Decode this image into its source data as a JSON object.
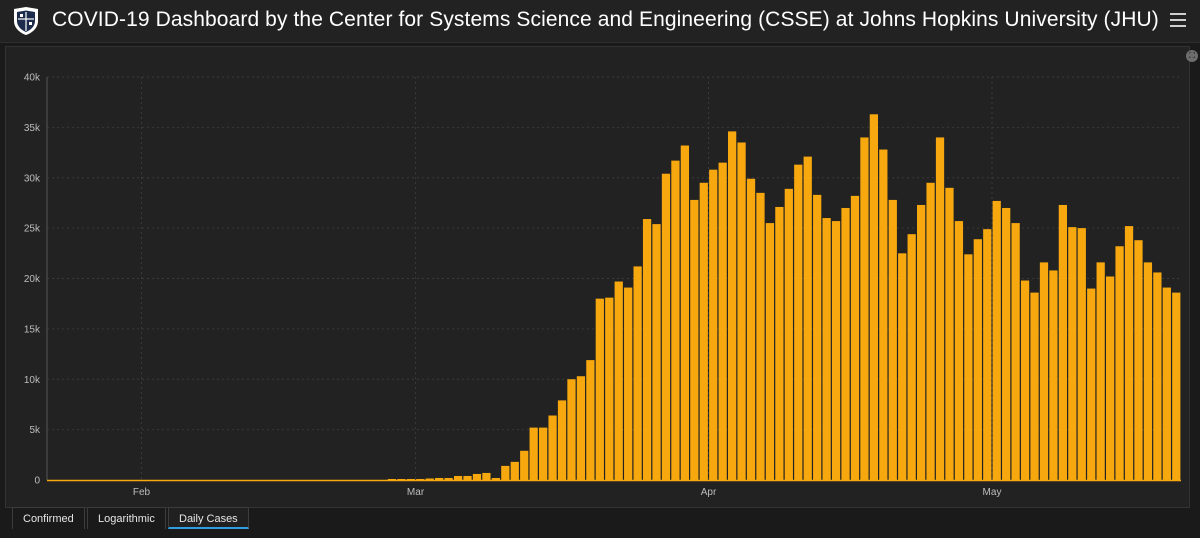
{
  "header": {
    "title": "COVID-19 Dashboard by the Center for Systems Science and Engineering (CSSE) at Johns Hopkins University (JHU)",
    "logo_icon": "jhu-shield-icon",
    "menu_icon": "hamburger-menu-icon"
  },
  "tabs": [
    {
      "label": "Confirmed",
      "active": false
    },
    {
      "label": "Logarithmic",
      "active": false
    },
    {
      "label": "Daily Cases",
      "active": true
    }
  ],
  "colors": {
    "bar": "#f7a80f",
    "background": "#222222",
    "grid": "#3a3a3a",
    "active_tab": "#2f9de0"
  },
  "chart_data": {
    "type": "bar",
    "grid": true,
    "ylim": [
      0,
      40000
    ],
    "y_ticks": [
      {
        "value": 0,
        "label": "0"
      },
      {
        "value": 5000,
        "label": "5k"
      },
      {
        "value": 10000,
        "label": "10k"
      },
      {
        "value": 15000,
        "label": "15k"
      },
      {
        "value": 20000,
        "label": "20k"
      },
      {
        "value": 25000,
        "label": "25k"
      },
      {
        "value": 30000,
        "label": "30k"
      },
      {
        "value": 35000,
        "label": "35k"
      },
      {
        "value": 40000,
        "label": "40k"
      }
    ],
    "x_ticks": [
      {
        "label": "Feb",
        "index": 10
      },
      {
        "label": "Mar",
        "index": 39
      },
      {
        "label": "Apr",
        "index": 70
      },
      {
        "label": "May",
        "index": 100
      }
    ],
    "series": [
      {
        "values": [
          0,
          0,
          0,
          0,
          0,
          0,
          0,
          0,
          0,
          0,
          0,
          0,
          0,
          0,
          0,
          0,
          0,
          0,
          0,
          0,
          0,
          0,
          0,
          0,
          0,
          0,
          0,
          0,
          0,
          0,
          0,
          0,
          0,
          0,
          0,
          0,
          100,
          100,
          100,
          100,
          150,
          200,
          200,
          400,
          400,
          600,
          700,
          200,
          1400,
          1800,
          2900,
          5200,
          5200,
          6400,
          7900,
          10000,
          10300,
          11900,
          18000,
          18100,
          19700,
          19100,
          21200,
          25900,
          25400,
          30400,
          31700,
          33200,
          27800,
          29500,
          30800,
          31500,
          34600,
          33500,
          29900,
          28500,
          25500,
          27100,
          28900,
          31300,
          32100,
          28300,
          26000,
          25700,
          27000,
          28200,
          34000,
          36300,
          32800,
          27800,
          22500,
          24400,
          27300,
          29500,
          34000,
          29000,
          25700,
          22400,
          23900,
          24900,
          27700,
          27000,
          25500,
          19800,
          18600,
          21600,
          20800,
          27300,
          25100,
          25000,
          19000,
          21600,
          20200,
          23200,
          25200,
          23800,
          21600,
          20600,
          19100,
          18600
        ]
      }
    ]
  }
}
